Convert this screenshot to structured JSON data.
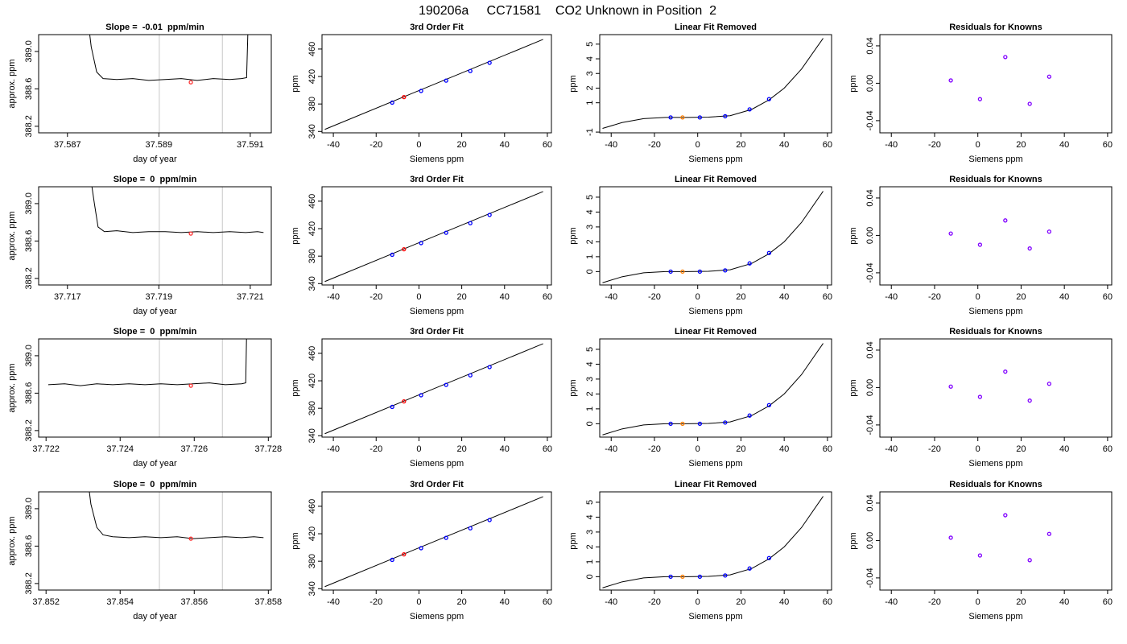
{
  "title": "190206a     CC71581    CO2 Unknown in Position  2",
  "chart_data": [
    {
      "type": "line",
      "title": "Slope =  -0.01  ppm/min",
      "x_label": "day of year",
      "y_label": "approx. ppm",
      "xlim": [
        37.58637,
        37.59146
      ],
      "xticks": [
        37.587,
        37.589,
        37.591
      ],
      "ylim": [
        388.13,
        389.18
      ],
      "yticks": [
        388.2,
        388.6,
        {
          "value": 389,
          "label": "389.0"
        }
      ],
      "vlines": [
        37.58901,
        37.59039
      ],
      "vline_color": "#c8c8c8",
      "series": [
        {
          "mode": "line",
          "color": "#000000",
          "x": [
            37.58741,
            37.58752,
            37.58764,
            37.58778,
            37.58808,
            37.58843,
            37.58878,
            37.58914,
            37.58949,
            37.58984,
            37.59019,
            37.59055,
            37.59081,
            37.59092,
            37.59097
          ],
          "values": [
            389.5,
            389.05,
            388.78,
            388.71,
            388.7,
            388.71,
            388.69,
            388.7,
            388.71,
            388.69,
            388.71,
            388.7,
            388.71,
            388.72,
            389.6
          ]
        },
        {
          "mode": "points",
          "color": "#ff3030",
          "x": [
            37.5897
          ],
          "values": [
            388.67
          ]
        }
      ]
    },
    {
      "type": "scatter",
      "title": "3rd Order Fit",
      "x_label": "Siemens ppm",
      "y_label": "ppm",
      "xlim": [
        -45.3,
        61.9
      ],
      "xticks": [
        -40,
        -20,
        0,
        20,
        40,
        60
      ],
      "ylim": [
        338,
        481
      ],
      "yticks": [
        340,
        380,
        420,
        460
      ],
      "series": [
        {
          "mode": "line",
          "color": "#000000",
          "x": [
            -44,
            58
          ],
          "values": [
            343,
            474
          ]
        },
        {
          "mode": "points",
          "color": "#0000ff",
          "x": [
            -12.5,
            1,
            12.7,
            24,
            33
          ],
          "values": [
            382,
            399,
            414,
            428,
            440
          ]
        },
        {
          "mode": "points",
          "color": "#ff0000",
          "x": [
            -7
          ],
          "values": [
            390
          ]
        }
      ]
    },
    {
      "type": "scatter",
      "title": "Linear Fit Removed",
      "x_label": "Siemens ppm",
      "y_label": "ppm",
      "xlim": [
        -45.3,
        61.9
      ],
      "xticks": [
        -40,
        -20,
        0,
        20,
        40,
        60
      ],
      "ylim": [
        -1.05,
        5.65
      ],
      "yticks": [
        -1,
        1,
        2,
        3,
        4,
        5
      ],
      "series": [
        {
          "mode": "line",
          "color": "#000000",
          "x": [
            -44,
            -35,
            -25,
            -15,
            -5,
            5,
            15,
            25,
            33,
            40,
            48,
            58
          ],
          "values": [
            -0.75,
            -0.35,
            -0.08,
            0,
            0,
            0.02,
            0.12,
            0.55,
            1.2,
            2.0,
            3.3,
            5.4
          ]
        },
        {
          "mode": "points",
          "color": "#0000ff",
          "x": [
            -12.5,
            1,
            12.7,
            24,
            33
          ],
          "values": [
            0,
            0,
            0.08,
            0.55,
            1.25
          ]
        },
        {
          "mode": "points",
          "color": "#ff7f00",
          "x": [
            -7
          ],
          "values": [
            0
          ]
        }
      ]
    },
    {
      "type": "scatter",
      "title": "Residuals for Knowns",
      "x_label": "Siemens ppm",
      "y_label": "ppm",
      "xlim": [
        -45.3,
        61.9
      ],
      "xticks": [
        -40,
        -20,
        0,
        20,
        40,
        60
      ],
      "ylim": [
        -0.053,
        0.052
      ],
      "yticks": [
        -0.04,
        {
          "value": 0,
          "label": "0.00"
        },
        0.04
      ],
      "series": [
        {
          "mode": "points",
          "color": "#8000ff",
          "x": [
            -12.5,
            1,
            12.7,
            24,
            33
          ],
          "values": [
            0.003,
            -0.017,
            0.028,
            -0.022,
            0.007
          ]
        }
      ]
    },
    {
      "type": "line",
      "title": "Slope =  0  ppm/min",
      "x_label": "day of year",
      "y_label": "approx. ppm",
      "xlim": [
        37.71637,
        37.72146
      ],
      "xticks": [
        37.717,
        37.719,
        37.721
      ],
      "ylim": [
        388.13,
        389.18
      ],
      "yticks": [
        388.2,
        388.6,
        {
          "value": 389,
          "label": "389.0"
        }
      ],
      "vlines": [
        37.71901,
        37.72039
      ],
      "vline_color": "#c8c8c8",
      "series": [
        {
          "mode": "line",
          "color": "#000000",
          "x": [
            37.7175,
            37.71759,
            37.71767,
            37.71781,
            37.71808,
            37.71843,
            37.71878,
            37.71914,
            37.71949,
            37.71984,
            37.72019,
            37.72055,
            37.7209,
            37.72116,
            37.72129
          ],
          "values": [
            389.3,
            389.0,
            388.75,
            388.7,
            388.71,
            388.69,
            388.7,
            388.7,
            388.69,
            388.7,
            388.69,
            388.7,
            388.69,
            388.7,
            388.69
          ]
        },
        {
          "mode": "points",
          "color": "#ff3030",
          "x": [
            37.7197
          ],
          "values": [
            388.68
          ]
        }
      ]
    },
    {
      "type": "scatter",
      "title": "3rd Order Fit",
      "x_label": "Siemens ppm",
      "y_label": "ppm",
      "xlim": [
        -45.3,
        61.9
      ],
      "xticks": [
        -40,
        -20,
        0,
        20,
        40,
        60
      ],
      "ylim": [
        338,
        481
      ],
      "yticks": [
        340,
        380,
        420,
        460
      ],
      "series": [
        {
          "mode": "line",
          "color": "#000000",
          "x": [
            -44,
            58
          ],
          "values": [
            343,
            474
          ]
        },
        {
          "mode": "points",
          "color": "#0000ff",
          "x": [
            -12.5,
            1,
            12.7,
            24,
            33
          ],
          "values": [
            382,
            399,
            414,
            428,
            440
          ]
        },
        {
          "mode": "points",
          "color": "#ff0000",
          "x": [
            -7
          ],
          "values": [
            390
          ]
        }
      ]
    },
    {
      "type": "scatter",
      "title": "Linear Fit Removed",
      "x_label": "Siemens ppm",
      "y_label": "ppm",
      "xlim": [
        -45.3,
        61.9
      ],
      "xticks": [
        -40,
        -20,
        0,
        20,
        40,
        60
      ],
      "ylim": [
        -0.9,
        5.7
      ],
      "yticks": [
        0,
        1,
        2,
        3,
        4,
        5
      ],
      "series": [
        {
          "mode": "line",
          "color": "#000000",
          "x": [
            -44,
            -35,
            -25,
            -15,
            -5,
            5,
            15,
            25,
            33,
            40,
            48,
            58
          ],
          "values": [
            -0.75,
            -0.35,
            -0.08,
            0,
            0,
            0.02,
            0.12,
            0.55,
            1.2,
            2.0,
            3.3,
            5.4
          ]
        },
        {
          "mode": "points",
          "color": "#0000ff",
          "x": [
            -12.5,
            1,
            12.7,
            24,
            33
          ],
          "values": [
            0,
            0,
            0.08,
            0.55,
            1.25
          ]
        },
        {
          "mode": "points",
          "color": "#ff7f00",
          "x": [
            -7
          ],
          "values": [
            0
          ]
        }
      ]
    },
    {
      "type": "scatter",
      "title": "Residuals for Knowns",
      "x_label": "Siemens ppm",
      "y_label": "ppm",
      "xlim": [
        -45.3,
        61.9
      ],
      "xticks": [
        -40,
        -20,
        0,
        20,
        40,
        60
      ],
      "ylim": [
        -0.053,
        0.052
      ],
      "yticks": [
        -0.04,
        {
          "value": 0,
          "label": "0.00"
        },
        0.04
      ],
      "series": [
        {
          "mode": "points",
          "color": "#8000ff",
          "x": [
            -12.5,
            1,
            12.7,
            24,
            33
          ],
          "values": [
            0.002,
            -0.01,
            0.016,
            -0.014,
            0.004
          ]
        }
      ]
    },
    {
      "type": "line",
      "title": "Slope =  0  ppm/min",
      "x_label": "day of year",
      "y_label": "approx. ppm",
      "xlim": [
        37.7218,
        37.72808
      ],
      "xticks": [
        37.722,
        37.724,
        37.726,
        37.728
      ],
      "ylim": [
        388.13,
        389.18
      ],
      "yticks": [
        388.2,
        388.6,
        {
          "value": 389,
          "label": "389.0"
        }
      ],
      "vlines": [
        37.72506,
        37.72676
      ],
      "vline_color": "#c8c8c8",
      "series": [
        {
          "mode": "line",
          "color": "#000000",
          "x": [
            37.72206,
            37.7225,
            37.72293,
            37.72337,
            37.7238,
            37.72424,
            37.72467,
            37.7251,
            37.72554,
            37.72597,
            37.72641,
            37.72684,
            37.72728,
            37.72739,
            37.72743
          ],
          "values": [
            388.69,
            388.7,
            388.68,
            388.7,
            388.69,
            388.7,
            388.69,
            388.7,
            388.69,
            388.7,
            388.71,
            388.69,
            388.7,
            388.71,
            389.6
          ]
        },
        {
          "mode": "points",
          "color": "#ff3030",
          "x": [
            37.72591
          ],
          "values": [
            388.68
          ]
        }
      ]
    },
    {
      "type": "scatter",
      "title": "3rd Order Fit",
      "x_label": "Siemens ppm",
      "y_label": "ppm",
      "xlim": [
        -45.3,
        61.9
      ],
      "xticks": [
        -40,
        -20,
        0,
        20,
        40,
        60
      ],
      "ylim": [
        338,
        481
      ],
      "yticks": [
        340,
        380,
        420,
        460
      ],
      "series": [
        {
          "mode": "line",
          "color": "#000000",
          "x": [
            -44,
            58
          ],
          "values": [
            343,
            474
          ]
        },
        {
          "mode": "points",
          "color": "#0000ff",
          "x": [
            -12.5,
            1,
            12.7,
            24,
            33
          ],
          "values": [
            382,
            399,
            414,
            428,
            440
          ]
        },
        {
          "mode": "points",
          "color": "#ff0000",
          "x": [
            -7
          ],
          "values": [
            390
          ]
        }
      ]
    },
    {
      "type": "scatter",
      "title": "Linear Fit Removed",
      "x_label": "Siemens ppm",
      "y_label": "ppm",
      "xlim": [
        -45.3,
        61.9
      ],
      "xticks": [
        -40,
        -20,
        0,
        20,
        40,
        60
      ],
      "ylim": [
        -0.9,
        5.7
      ],
      "yticks": [
        0,
        1,
        2,
        3,
        4,
        5
      ],
      "series": [
        {
          "mode": "line",
          "color": "#000000",
          "x": [
            -44,
            -35,
            -25,
            -15,
            -5,
            5,
            15,
            25,
            33,
            40,
            48,
            58
          ],
          "values": [
            -0.75,
            -0.35,
            -0.08,
            0,
            0,
            0.02,
            0.12,
            0.55,
            1.2,
            2.0,
            3.3,
            5.4
          ]
        },
        {
          "mode": "points",
          "color": "#0000ff",
          "x": [
            -12.5,
            1,
            12.7,
            24,
            33
          ],
          "values": [
            0,
            0,
            0.08,
            0.55,
            1.25
          ]
        },
        {
          "mode": "points",
          "color": "#ff7f00",
          "x": [
            -7
          ],
          "values": [
            0
          ]
        }
      ]
    },
    {
      "type": "scatter",
      "title": "Residuals for Knowns",
      "x_label": "Siemens ppm",
      "y_label": "ppm",
      "xlim": [
        -45.3,
        61.9
      ],
      "xticks": [
        -40,
        -20,
        0,
        20,
        40,
        60
      ],
      "ylim": [
        -0.053,
        0.052
      ],
      "yticks": [
        -0.04,
        {
          "value": 0,
          "label": "0.00"
        },
        0.04
      ],
      "series": [
        {
          "mode": "points",
          "color": "#8000ff",
          "x": [
            -12.5,
            1,
            12.7,
            24,
            33
          ],
          "values": [
            0.001,
            -0.01,
            0.017,
            -0.014,
            0.004
          ]
        }
      ]
    },
    {
      "type": "line",
      "title": "Slope =  0  ppm/min",
      "x_label": "day of year",
      "y_label": "approx. ppm",
      "xlim": [
        37.8518,
        37.85808
      ],
      "xticks": [
        37.852,
        37.854,
        37.856,
        37.858
      ],
      "ylim": [
        388.13,
        389.18
      ],
      "yticks": [
        388.2,
        388.6,
        {
          "value": 389,
          "label": "389.0"
        }
      ],
      "vlines": [
        37.85506,
        37.85676
      ],
      "vline_color": "#c8c8c8",
      "series": [
        {
          "mode": "line",
          "color": "#000000",
          "x": [
            37.8531,
            37.85321,
            37.85337,
            37.85354,
            37.8538,
            37.85424,
            37.85467,
            37.8551,
            37.85554,
            37.85597,
            37.85641,
            37.85684,
            37.85728,
            37.85761,
            37.85787
          ],
          "values": [
            389.4,
            389.05,
            388.8,
            388.72,
            388.7,
            388.69,
            388.7,
            388.69,
            388.7,
            388.68,
            388.69,
            388.7,
            388.69,
            388.7,
            388.69
          ]
        },
        {
          "mode": "points",
          "color": "#ff3030",
          "x": [
            37.85591
          ],
          "values": [
            388.68
          ]
        }
      ]
    },
    {
      "type": "scatter",
      "title": "3rd Order Fit",
      "x_label": "Siemens ppm",
      "y_label": "ppm",
      "xlim": [
        -45.3,
        61.9
      ],
      "xticks": [
        -40,
        -20,
        0,
        20,
        40,
        60
      ],
      "ylim": [
        338,
        481
      ],
      "yticks": [
        340,
        380,
        420,
        460
      ],
      "series": [
        {
          "mode": "line",
          "color": "#000000",
          "x": [
            -44,
            58
          ],
          "values": [
            343,
            474
          ]
        },
        {
          "mode": "points",
          "color": "#0000ff",
          "x": [
            -12.5,
            1,
            12.7,
            24,
            33
          ],
          "values": [
            382,
            399,
            414,
            428,
            440
          ]
        },
        {
          "mode": "points",
          "color": "#ff0000",
          "x": [
            -7
          ],
          "values": [
            390
          ]
        }
      ]
    },
    {
      "type": "scatter",
      "title": "Linear Fit Removed",
      "x_label": "Siemens ppm",
      "y_label": "ppm",
      "xlim": [
        -45.3,
        61.9
      ],
      "xticks": [
        -40,
        -20,
        0,
        20,
        40,
        60
      ],
      "ylim": [
        -0.9,
        5.7
      ],
      "yticks": [
        0,
        1,
        2,
        3,
        4,
        5
      ],
      "series": [
        {
          "mode": "line",
          "color": "#000000",
          "x": [
            -44,
            -35,
            -25,
            -15,
            -5,
            5,
            15,
            25,
            33,
            40,
            48,
            58
          ],
          "values": [
            -0.75,
            -0.35,
            -0.08,
            0,
            0,
            0.02,
            0.12,
            0.55,
            1.2,
            2.0,
            3.3,
            5.4
          ]
        },
        {
          "mode": "points",
          "color": "#0000ff",
          "x": [
            -12.5,
            1,
            12.7,
            24,
            33
          ],
          "values": [
            0,
            0,
            0.08,
            0.55,
            1.25
          ]
        },
        {
          "mode": "points",
          "color": "#ff7f00",
          "x": [
            -7
          ],
          "values": [
            0
          ]
        }
      ]
    },
    {
      "type": "scatter",
      "title": "Residuals for Knowns",
      "x_label": "Siemens ppm",
      "y_label": "ppm",
      "xlim": [
        -45.3,
        61.9
      ],
      "xticks": [
        -40,
        -20,
        0,
        20,
        40,
        60
      ],
      "ylim": [
        -0.053,
        0.052
      ],
      "yticks": [
        -0.04,
        {
          "value": 0,
          "label": "0.00"
        },
        0.04
      ],
      "series": [
        {
          "mode": "points",
          "color": "#8000ff",
          "x": [
            -12.5,
            1,
            12.7,
            24,
            33
          ],
          "values": [
            0.003,
            -0.016,
            0.027,
            -0.021,
            0.007
          ]
        }
      ]
    }
  ]
}
